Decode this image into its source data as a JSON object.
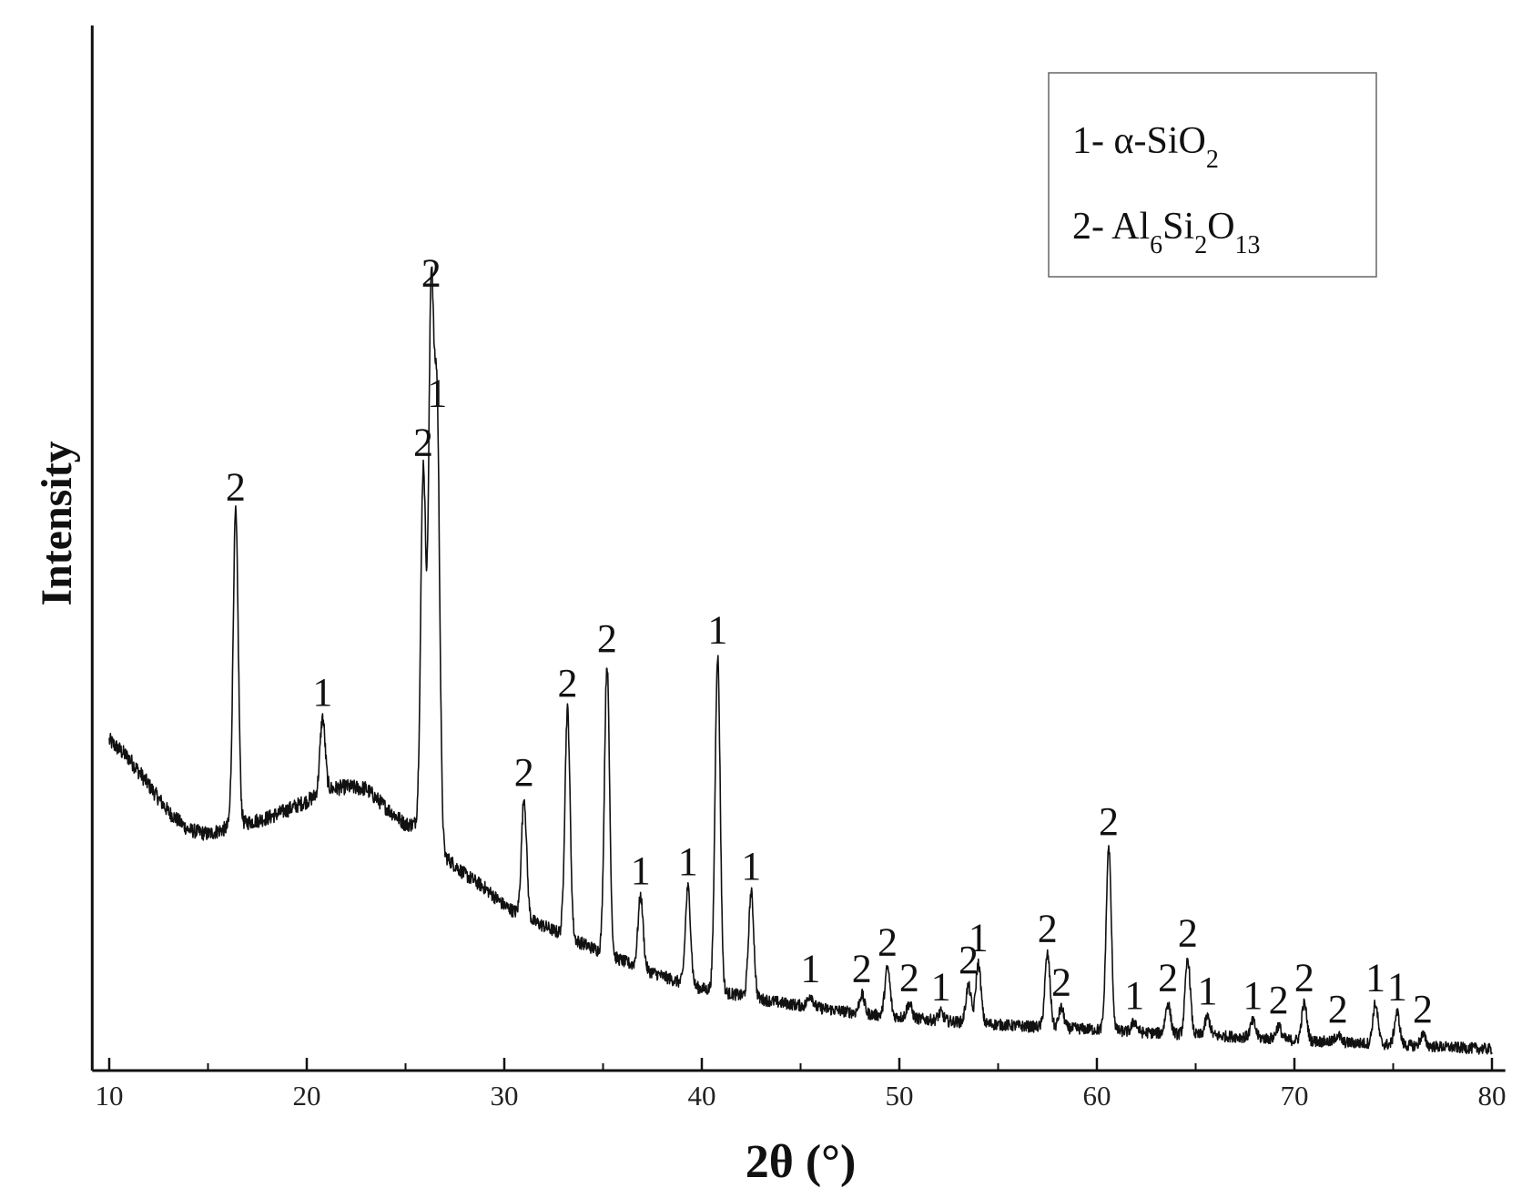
{
  "chart_data": {
    "type": "line",
    "title": "",
    "xlabel": "2θ  (°)",
    "ylabel": "Intensity",
    "xlim": [
      9,
      81
    ],
    "ylim": [
      0,
      100
    ],
    "x_ticks": [
      10,
      20,
      30,
      40,
      50,
      60,
      70,
      80
    ],
    "x_minor_ticks": [
      15,
      25,
      35,
      45,
      55,
      65,
      75
    ],
    "y_ticks_shown": false,
    "grid": false,
    "legend": {
      "position": "top-right",
      "entries": [
        {
          "prefix": "1- ",
          "main": "α-SiO",
          "sub": "2",
          "tail": ""
        },
        {
          "prefix": "2- ",
          "main": "Al",
          "sub": "6",
          "mid": "Si",
          "sub2": "2",
          "mid2": "O",
          "sub3": "13"
        }
      ]
    },
    "baseline": [
      [
        10,
        37
      ],
      [
        11,
        35
      ],
      [
        12,
        32
      ],
      [
        13,
        29
      ],
      [
        14,
        27
      ],
      [
        15,
        26.5
      ],
      [
        16,
        27.2
      ],
      [
        17,
        27.8
      ],
      [
        18,
        28.3
      ],
      [
        19,
        29.2
      ],
      [
        20,
        30.2
      ],
      [
        21,
        31.5
      ],
      [
        22,
        31.8
      ],
      [
        23,
        31.6
      ],
      [
        24,
        29.5
      ],
      [
        25,
        27.6
      ],
      [
        25.7,
        27.6
      ],
      [
        26.5,
        26.5
      ],
      [
        27,
        24
      ],
      [
        28,
        22
      ],
      [
        29,
        20.5
      ],
      [
        30,
        18.5
      ],
      [
        31,
        17.2
      ],
      [
        32,
        16.2
      ],
      [
        33,
        15.2
      ],
      [
        34,
        14.2
      ],
      [
        35,
        13.2
      ],
      [
        36,
        12.3
      ],
      [
        37,
        11.4
      ],
      [
        38,
        10.6
      ],
      [
        39,
        9.8
      ],
      [
        40,
        9.2
      ],
      [
        41,
        8.8
      ],
      [
        42,
        8.4
      ],
      [
        43,
        8.0
      ],
      [
        44,
        7.6
      ],
      [
        45,
        7.3
      ],
      [
        46,
        7.0
      ],
      [
        47,
        6.7
      ],
      [
        48,
        6.4
      ],
      [
        50,
        6.0
      ],
      [
        52,
        5.6
      ],
      [
        54,
        5.3
      ],
      [
        56,
        5.0
      ],
      [
        58,
        4.8
      ],
      [
        60,
        4.6
      ],
      [
        62,
        4.3
      ],
      [
        64,
        4.1
      ],
      [
        66,
        3.9
      ],
      [
        68,
        3.7
      ],
      [
        70,
        3.4
      ],
      [
        72,
        3.2
      ],
      [
        74,
        3.0
      ],
      [
        76,
        2.8
      ],
      [
        78,
        2.6
      ],
      [
        80,
        2.4
      ]
    ],
    "series": [
      {
        "peaks": [
          {
            "x": 16.4,
            "y": 62.5,
            "phase": "2"
          },
          {
            "x": 20.8,
            "y": 39.5,
            "phase": "1"
          },
          {
            "x": 25.9,
            "y": 67.5,
            "phase": "2"
          },
          {
            "x": 26.3,
            "y": 86.5,
            "phase": "2"
          },
          {
            "x": 26.6,
            "y": 73.0,
            "phase": "1"
          },
          {
            "x": 31.0,
            "y": 30.5,
            "phase": "2"
          },
          {
            "x": 33.2,
            "y": 40.5,
            "phase": "2"
          },
          {
            "x": 35.2,
            "y": 45.5,
            "phase": "2"
          },
          {
            "x": 36.9,
            "y": 19.5,
            "phase": "1"
          },
          {
            "x": 39.3,
            "y": 20.5,
            "phase": "1"
          },
          {
            "x": 40.8,
            "y": 46.5,
            "phase": "1"
          },
          {
            "x": 42.5,
            "y": 20.0,
            "phase": "1"
          },
          {
            "x": 45.5,
            "y": 8.5,
            "phase": "1"
          },
          {
            "x": 48.1,
            "y": 8.5,
            "phase": "2"
          },
          {
            "x": 49.4,
            "y": 11.5,
            "phase": "2"
          },
          {
            "x": 50.5,
            "y": 7.5,
            "phase": "2"
          },
          {
            "x": 52.1,
            "y": 6.5,
            "phase": "1"
          },
          {
            "x": 53.5,
            "y": 9.5,
            "phase": "2"
          },
          {
            "x": 54.0,
            "y": 12.0,
            "phase": "1"
          },
          {
            "x": 57.5,
            "y": 13.0,
            "phase": "2"
          },
          {
            "x": 58.2,
            "y": 7.0,
            "phase": "2"
          },
          {
            "x": 60.6,
            "y": 25.0,
            "phase": "2"
          },
          {
            "x": 61.9,
            "y": 5.5,
            "phase": "1"
          },
          {
            "x": 63.6,
            "y": 7.5,
            "phase": "2"
          },
          {
            "x": 64.6,
            "y": 12.5,
            "phase": "2"
          },
          {
            "x": 65.6,
            "y": 6.0,
            "phase": "1"
          },
          {
            "x": 67.9,
            "y": 5.5,
            "phase": "1"
          },
          {
            "x": 69.2,
            "y": 5.0,
            "phase": "2"
          },
          {
            "x": 70.5,
            "y": 7.5,
            "phase": "2"
          },
          {
            "x": 72.2,
            "y": 4.0,
            "phase": "2"
          },
          {
            "x": 74.1,
            "y": 7.5,
            "phase": "1"
          },
          {
            "x": 75.2,
            "y": 6.5,
            "phase": "1"
          },
          {
            "x": 76.5,
            "y": 4.0,
            "phase": "2"
          }
        ]
      }
    ]
  }
}
